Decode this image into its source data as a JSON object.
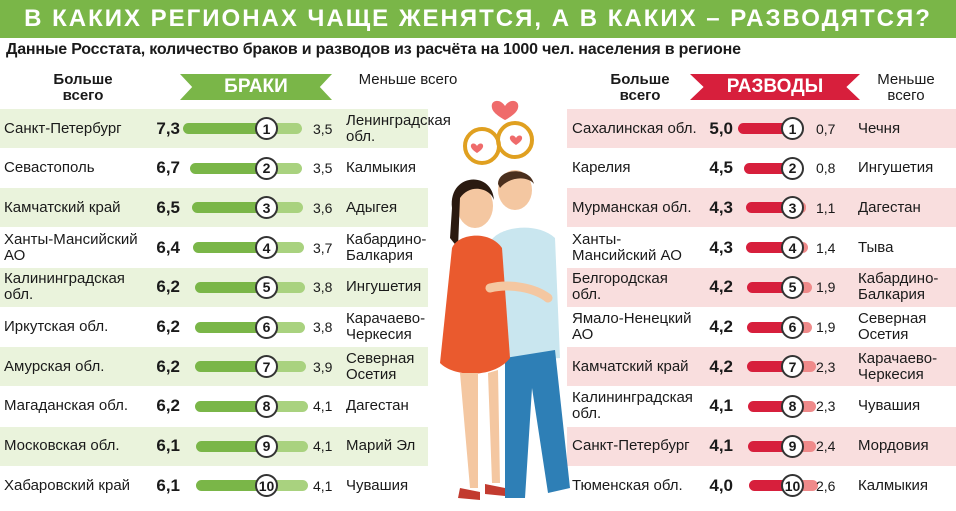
{
  "title": "В КАКИХ РЕГИОНАХ ЧАЩЕ ЖЕНЯТСЯ, А В КАКИХ – РАЗВОДЯТСЯ?",
  "subtitle": "Данные Росстата, количество браков и разводов из расчёта на 1000 чел. населения в регионе",
  "headers": {
    "most": "Больше всего",
    "least": "Меньше всего",
    "marriages": "БРАКИ",
    "divorces": "РАЗВОДЫ"
  },
  "colors": {
    "green": "#7ab648",
    "light_green": "#a9d27f",
    "red": "#d71f3c",
    "light_red": "#ef8a8a",
    "band_green": "#eaf3dc",
    "band_red": "#f9dede"
  },
  "chart_data": [
    {
      "type": "bar",
      "title": "БРАКИ",
      "ranks": [
        "1",
        "2",
        "3",
        "4",
        "5",
        "6",
        "7",
        "8",
        "9",
        "10"
      ],
      "series": [
        {
          "name": "Больше всего",
          "values": [
            7.3,
            6.7,
            6.5,
            6.4,
            6.2,
            6.2,
            6.2,
            6.2,
            6.1,
            6.1
          ],
          "value_labels": [
            "7,3",
            "6,7",
            "6,5",
            "6,4",
            "6,2",
            "6,2",
            "6,2",
            "6,2",
            "6,1",
            "6,1"
          ],
          "regions": [
            "Санкт-Петербург",
            "Севастополь",
            "Камчатский край",
            "Ханты-Мансийский АО",
            "Калининградская обл.",
            "Иркутская обл.",
            "Амурская обл.",
            "Магаданская обл.",
            "Московская обл.",
            "Хабаровский край"
          ]
        },
        {
          "name": "Меньше всего",
          "values": [
            3.5,
            3.5,
            3.6,
            3.7,
            3.8,
            3.8,
            3.9,
            4.1,
            4.1,
            4.1
          ],
          "value_labels": [
            "3,5",
            "3,5",
            "3,6",
            "3,7",
            "3,8",
            "3,8",
            "3,9",
            "4,1",
            "4,1",
            "4,1"
          ],
          "regions": [
            "Ленинградская обл.",
            "Калмыкия",
            "Адыгея",
            "Кабардино-Балкария",
            "Ингушетия",
            "Карачаево-Черкесия",
            "Северная Осетия",
            "Дагестан",
            "Марий Эл",
            "Чувашия"
          ]
        }
      ]
    },
    {
      "type": "bar",
      "title": "РАЗВОДЫ",
      "ranks": [
        "1",
        "2",
        "3",
        "4",
        "5",
        "6",
        "7",
        "8",
        "9",
        "10"
      ],
      "series": [
        {
          "name": "Больше всего",
          "values": [
            5.0,
            4.5,
            4.3,
            4.3,
            4.2,
            4.2,
            4.2,
            4.1,
            4.1,
            4.0
          ],
          "value_labels": [
            "5,0",
            "4,5",
            "4,3",
            "4,3",
            "4,2",
            "4,2",
            "4,2",
            "4,1",
            "4,1",
            "4,0"
          ],
          "regions": [
            "Сахалинская обл.",
            "Карелия",
            "Мурманская обл.",
            "Ханты-Мансийский АО",
            "Белгородская обл.",
            "Ямало-Ненецкий АО",
            "Камчатский край",
            "Калининградская обл.",
            "Санкт-Петербург",
            "Тюменская обл."
          ]
        },
        {
          "name": "Меньше всего",
          "values": [
            0.7,
            0.8,
            1.1,
            1.4,
            1.9,
            1.9,
            2.3,
            2.3,
            2.4,
            2.6
          ],
          "value_labels": [
            "0,7",
            "0,8",
            "1,1",
            "1,4",
            "1,9",
            "1,9",
            "2,3",
            "2,3",
            "2,4",
            "2,6"
          ],
          "regions": [
            "Чечня",
            "Ингушетия",
            "Дагестан",
            "Тыва",
            "Кабардино-Балкария",
            "Северная Осетия",
            "Карачаево-Черкесия",
            "Чувашия",
            "Мордовия",
            "Калмыкия"
          ]
        }
      ]
    }
  ]
}
